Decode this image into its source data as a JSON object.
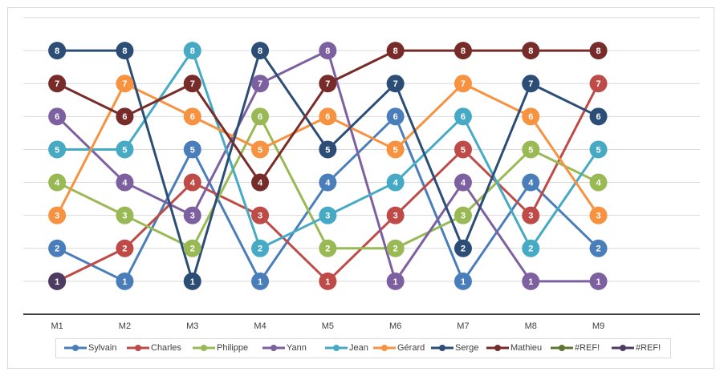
{
  "chart_data": {
    "type": "line",
    "categories": [
      "M1",
      "M2",
      "M3",
      "M4",
      "M5",
      "M6",
      "M7",
      "M8",
      "M9"
    ],
    "series": [
      {
        "name": "Sylvain",
        "color": "#4a7ebb",
        "values": [
          2,
          1,
          5,
          1,
          4,
          6,
          1,
          4,
          2
        ]
      },
      {
        "name": "Charles",
        "color": "#be4b48",
        "values": [
          1,
          2,
          4,
          3,
          1,
          3,
          5,
          3,
          7
        ]
      },
      {
        "name": "Philippe",
        "color": "#98b954",
        "values": [
          4,
          3,
          2,
          6,
          2,
          2,
          3,
          5,
          4
        ]
      },
      {
        "name": "Yann",
        "color": "#7d60a0",
        "values": [
          6,
          4,
          3,
          7,
          8,
          1,
          4,
          1,
          1
        ]
      },
      {
        "name": "Jean",
        "color": "#46aac5",
        "values": [
          5,
          5,
          8,
          2,
          3,
          4,
          6,
          2,
          5
        ]
      },
      {
        "name": "Gérard",
        "color": "#f69240",
        "values": [
          3,
          7,
          6,
          5,
          6,
          5,
          7,
          6,
          3
        ]
      },
      {
        "name": "Serge",
        "color": "#2c4d75",
        "values": [
          8,
          8,
          1,
          8,
          5,
          7,
          2,
          7,
          6
        ]
      },
      {
        "name": "Mathieu",
        "color": "#772c2a",
        "values": [
          7,
          6,
          7,
          4,
          7,
          8,
          8,
          8,
          8
        ]
      },
      {
        "name": "#REF!",
        "color": "#5f7530",
        "values": [
          null,
          null,
          null,
          null,
          null,
          null,
          null,
          null,
          null
        ]
      },
      {
        "name": "#REF!",
        "color": "#4d3b62",
        "values": [
          1,
          null,
          null,
          null,
          null,
          null,
          null,
          null,
          null
        ]
      }
    ],
    "ylim": [
      0,
      9
    ],
    "yticks": [
      0,
      1,
      2,
      3,
      4,
      5,
      6,
      7,
      8,
      9
    ],
    "grid": true,
    "legend": "bottom"
  }
}
